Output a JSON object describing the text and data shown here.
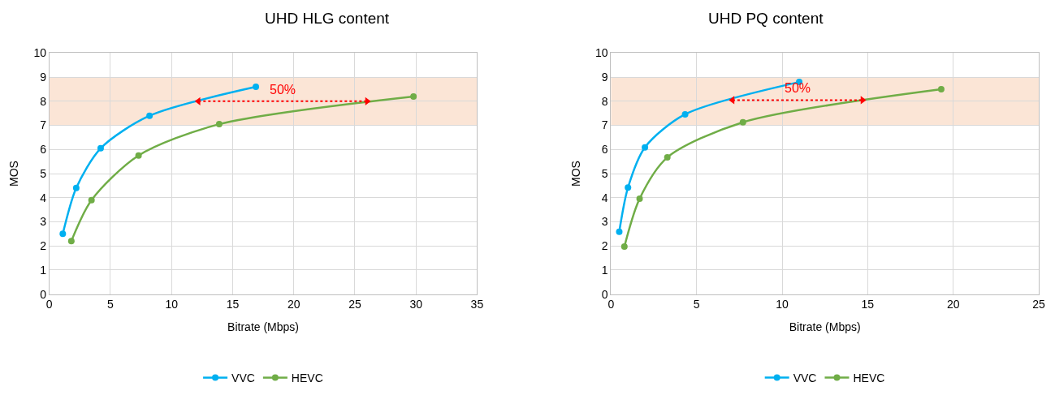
{
  "chart_data": [
    {
      "type": "line",
      "title": "UHD HLG content",
      "xlabel": "Bitrate (Mbps)",
      "ylabel": "MOS",
      "xlim": [
        0,
        35
      ],
      "xticks": [
        0,
        5,
        10,
        15,
        20,
        25,
        30,
        35
      ],
      "ylim": [
        0,
        10
      ],
      "yticks": [
        0,
        1,
        2,
        3,
        4,
        5,
        6,
        7,
        8,
        9,
        10
      ],
      "grid": true,
      "legend": "bottom",
      "marker": "circle",
      "line_style": "solid",
      "series": [
        {
          "name": "VVC",
          "color": "#00b0f0",
          "x": [
            1.1,
            2.2,
            4.2,
            8.2,
            16.9
          ],
          "values": [
            2.5,
            4.4,
            6.05,
            7.4,
            8.6
          ]
        },
        {
          "name": "HEVC",
          "color": "#70ad47",
          "x": [
            1.8,
            3.45,
            7.3,
            13.9,
            29.8
          ],
          "values": [
            2.2,
            3.9,
            5.75,
            7.05,
            8.2
          ]
        },
        {
          "color": "#ff0000",
          "x": [
            12.2,
            26
          ],
          "values": [
            8,
            8
          ],
          "line_style": "dotted",
          "marker": "triangle"
        }
      ],
      "bands": [
        {
          "axis": "y",
          "from": 7,
          "to": 9,
          "color": "#fbe5d6"
        }
      ],
      "annotations": [
        "50%"
      ]
    },
    {
      "type": "line",
      "title": "UHD PQ content",
      "xlabel": "Bitrate (Mbps)",
      "ylabel": "MOS",
      "xlim": [
        0,
        25
      ],
      "xticks": [
        0,
        5,
        10,
        15,
        20,
        25
      ],
      "ylim": [
        0,
        10
      ],
      "yticks": [
        0,
        1,
        2,
        3,
        4,
        5,
        6,
        7,
        8,
        9,
        10
      ],
      "grid": true,
      "legend": "bottom",
      "marker": "circle",
      "line_style": "solid",
      "series": [
        {
          "name": "VVC",
          "color": "#00b0f0",
          "x": [
            0.48,
            0.99,
            1.98,
            4.33,
            11.0
          ],
          "values": [
            2.59,
            4.42,
            6.09,
            7.46,
            8.8
          ]
        },
        {
          "name": "HEVC",
          "color": "#70ad47",
          "x": [
            0.78,
            1.67,
            3.29,
            7.71,
            19.3
          ],
          "values": [
            1.97,
            3.96,
            5.67,
            7.13,
            8.5
          ]
        },
        {
          "color": "#ff0000",
          "x": [
            7.1,
            14.7
          ],
          "values": [
            8.05,
            8.05
          ],
          "line_style": "dotted",
          "marker": "triangle"
        }
      ],
      "bands": [
        {
          "axis": "y",
          "from": 7,
          "to": 9,
          "color": "#fbe5d6"
        }
      ],
      "annotations": [
        "50%"
      ]
    }
  ]
}
